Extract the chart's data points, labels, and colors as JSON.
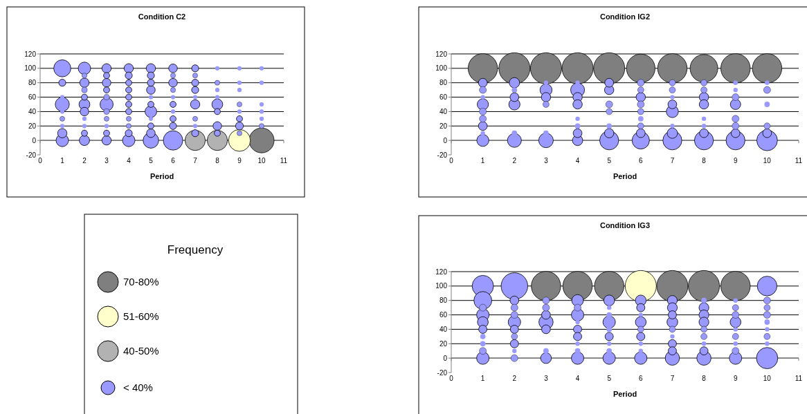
{
  "chart_data": [
    {
      "type": "bubble",
      "title": "Condition C2",
      "xlabel": "Period",
      "xlim": [
        0,
        11
      ],
      "xticks": [
        0,
        1,
        2,
        3,
        4,
        5,
        6,
        7,
        8,
        9,
        10,
        11
      ],
      "ylim": [
        -20,
        120
      ],
      "yticks": [
        -20,
        0,
        20,
        40,
        60,
        80,
        100,
        120
      ],
      "grid": "y",
      "series": [
        {
          "color": "#9999ff",
          "x": [
            1,
            1,
            1,
            1,
            1,
            1,
            1,
            1,
            1,
            2,
            2,
            2,
            2,
            2,
            2,
            2,
            2,
            2,
            2,
            2,
            3,
            3,
            3,
            3,
            3,
            3,
            3,
            3,
            3,
            3,
            3,
            4,
            4,
            4,
            4,
            4,
            4,
            4,
            4,
            4,
            4,
            4,
            5,
            5,
            5,
            5,
            5,
            5,
            5,
            5,
            5,
            5,
            5,
            6,
            6,
            6,
            6,
            6,
            6,
            6,
            6,
            6,
            6,
            7,
            7,
            7,
            7,
            7,
            7,
            7,
            7,
            7,
            8,
            8,
            8,
            8,
            8,
            8,
            8,
            8,
            9,
            9,
            9,
            9,
            9,
            9,
            9,
            9,
            10,
            10,
            10,
            10,
            10,
            10
          ],
          "values": [
            100,
            80,
            60,
            50,
            40,
            30,
            20,
            10,
            0,
            100,
            90,
            80,
            70,
            60,
            50,
            40,
            30,
            20,
            10,
            0,
            100,
            90,
            80,
            70,
            60,
            50,
            40,
            30,
            20,
            10,
            0,
            100,
            90,
            80,
            70,
            60,
            50,
            40,
            30,
            20,
            10,
            0,
            100,
            90,
            80,
            70,
            60,
            50,
            40,
            30,
            20,
            10,
            0,
            100,
            90,
            80,
            70,
            60,
            50,
            40,
            30,
            20,
            0,
            100,
            90,
            80,
            70,
            60,
            50,
            30,
            20,
            10,
            100,
            80,
            70,
            60,
            50,
            40,
            20,
            10,
            100,
            80,
            70,
            50,
            40,
            30,
            20,
            10,
            100,
            80,
            50,
            40,
            30,
            20
          ],
          "sizes": [
            0.47,
            0.08,
            0.03,
            0.32,
            0.03,
            0.04,
            0.03,
            0.14,
            0.25,
            0.25,
            0.04,
            0.14,
            0.05,
            0.06,
            0.19,
            0.12,
            0.03,
            0.03,
            0.06,
            0.17,
            0.14,
            0.06,
            0.12,
            0.06,
            0.05,
            0.28,
            0.05,
            0.04,
            0.03,
            0.06,
            0.14,
            0.14,
            0.08,
            0.06,
            0.06,
            0.06,
            0.06,
            0.06,
            0.04,
            0.04,
            0.08,
            0.25,
            0.14,
            0.08,
            0.08,
            0.12,
            0.03,
            0.06,
            0.22,
            0.03,
            0.06,
            0.12,
            0.39,
            0.12,
            0.04,
            0.12,
            0.04,
            0.03,
            0.06,
            0.03,
            0.06,
            0.08,
            0.61,
            0.08,
            0.04,
            0.08,
            0.08,
            0.03,
            0.14,
            0.04,
            0.03,
            0.08,
            0.03,
            0.04,
            0.03,
            0.03,
            0.19,
            0.06,
            0.12,
            0.06,
            0.03,
            0.03,
            0.03,
            0.04,
            0.03,
            0.06,
            0.1,
            0.04,
            0.03,
            0.03,
            0.03,
            0.03,
            0.03,
            0.04
          ]
        },
        {
          "color": "#b2b2b2",
          "x": [
            7,
            8
          ],
          "values": [
            0,
            0
          ],
          "sizes": [
            0.66,
            0.66
          ]
        },
        {
          "color": "#ffffcc",
          "x": [
            9
          ],
          "values": [
            0
          ],
          "sizes": [
            0.77
          ]
        },
        {
          "color": "#7f7f7f",
          "x": [
            10
          ],
          "values": [
            0
          ],
          "sizes": [
            1
          ]
        }
      ]
    },
    {
      "type": "bubble",
      "title": "Condition IG2",
      "xlabel": "Period",
      "xlim": [
        0,
        11
      ],
      "xticks": [
        0,
        1,
        2,
        3,
        4,
        5,
        6,
        7,
        8,
        9,
        10,
        11
      ],
      "ylim": [
        -20,
        120
      ],
      "yticks": [
        -20,
        0,
        20,
        40,
        60,
        80,
        100,
        120
      ],
      "grid": "y",
      "series": [
        {
          "color": "#7f7f7f",
          "x": [
            1,
            2,
            3,
            4,
            5,
            6,
            7,
            8,
            9,
            10
          ],
          "values": [
            100,
            100,
            100,
            100,
            100,
            100,
            100,
            100,
            100,
            100
          ],
          "sizes": [
            0.89,
            1,
            1,
            1,
            1,
            0.84,
            0.89,
            0.79,
            0.89,
            0.89
          ]
        },
        {
          "color": "#9999ff",
          "x": [
            1,
            1,
            1,
            1,
            1,
            1,
            1,
            1,
            1,
            2,
            2,
            2,
            2,
            2,
            2,
            3,
            3,
            3,
            3,
            3,
            3,
            4,
            4,
            4,
            4,
            4,
            4,
            4,
            4,
            5,
            5,
            5,
            5,
            5,
            5,
            5,
            6,
            6,
            6,
            6,
            6,
            6,
            6,
            6,
            6,
            7,
            7,
            7,
            7,
            7,
            7,
            7,
            7,
            8,
            8,
            8,
            8,
            8,
            8,
            8,
            8,
            9,
            9,
            9,
            9,
            9,
            9,
            9,
            9,
            10,
            10,
            10,
            10,
            10,
            10
          ],
          "values": [
            80,
            70,
            60,
            50,
            40,
            30,
            20,
            10,
            0,
            80,
            70,
            60,
            50,
            10,
            0,
            80,
            70,
            60,
            50,
            10,
            0,
            80,
            70,
            60,
            50,
            30,
            20,
            10,
            0,
            80,
            70,
            50,
            40,
            20,
            10,
            0,
            80,
            70,
            60,
            50,
            40,
            30,
            20,
            10,
            0,
            80,
            70,
            60,
            50,
            40,
            20,
            10,
            0,
            80,
            70,
            60,
            50,
            30,
            20,
            10,
            0,
            80,
            70,
            60,
            50,
            30,
            20,
            10,
            0,
            80,
            70,
            50,
            20,
            10,
            0
          ],
          "sizes": [
            0.08,
            0.05,
            0.02,
            0.13,
            0.05,
            0.05,
            0.08,
            0.02,
            0.15,
            0.11,
            0.03,
            0.08,
            0.13,
            0.03,
            0.2,
            0.02,
            0.15,
            0.09,
            0.04,
            0.03,
            0.22,
            0.02,
            0.2,
            0.09,
            0.09,
            0.02,
            0.03,
            0.08,
            0.11,
            0.08,
            0.09,
            0.05,
            0.04,
            0.03,
            0.09,
            0.37,
            0.05,
            0.04,
            0.09,
            0.05,
            0.04,
            0.03,
            0.04,
            0.08,
            0.31,
            0.04,
            0.04,
            0.02,
            0.08,
            0.15,
            0.02,
            0.11,
            0.37,
            0.04,
            0.04,
            0.09,
            0.09,
            0.02,
            0.02,
            0.08,
            0.37,
            0.02,
            0.02,
            0.05,
            0.11,
            0.05,
            0.05,
            0.08,
            0.37,
            0.02,
            0.05,
            0.03,
            0.04,
            0.08,
            0.44
          ]
        }
      ]
    },
    {
      "type": "other",
      "title": "Frequency",
      "categories": [
        "70-80%",
        "51-60%",
        "40-50%",
        "< 40%"
      ],
      "colors": [
        "#7f7f7f",
        "#ffffcc",
        "#b2b2b2",
        "#9999ff"
      ]
    },
    {
      "type": "bubble",
      "title": "Condition IG3",
      "xlabel": "Period",
      "xlim": [
        0,
        11
      ],
      "xticks": [
        0,
        1,
        2,
        3,
        4,
        5,
        6,
        7,
        8,
        9,
        10,
        11
      ],
      "ylim": [
        -20,
        120
      ],
      "yticks": [
        -20,
        0,
        20,
        40,
        60,
        80,
        100,
        120
      ],
      "grid": "y",
      "series": [
        {
          "color": "#7f7f7f",
          "x": [
            3,
            4,
            5,
            7,
            8,
            9
          ],
          "values": [
            100,
            100,
            100,
            100,
            100,
            100
          ],
          "sizes": [
            0.89,
            0.89,
            0.89,
            1,
            1,
            0.89
          ]
        },
        {
          "color": "#ffffcc",
          "x": [
            6
          ],
          "values": [
            100
          ],
          "sizes": [
            1
          ]
        },
        {
          "color": "#9999ff",
          "x": [
            1,
            1,
            1,
            1,
            1,
            1,
            1,
            1,
            1,
            1,
            2,
            2,
            2,
            2,
            2,
            2,
            2,
            2,
            2,
            2,
            3,
            3,
            3,
            3,
            3,
            3,
            3,
            4,
            4,
            4,
            4,
            4,
            4,
            4,
            4,
            4,
            5,
            5,
            5,
            5,
            5,
            5,
            5,
            5,
            5,
            6,
            6,
            6,
            6,
            6,
            6,
            6,
            6,
            6,
            7,
            7,
            7,
            7,
            7,
            7,
            7,
            7,
            7,
            8,
            8,
            8,
            8,
            8,
            8,
            8,
            8,
            8,
            9,
            9,
            9,
            9,
            9,
            9,
            9,
            9,
            9,
            10,
            10,
            10,
            10,
            10,
            10,
            10,
            10,
            10
          ],
          "values": [
            100,
            80,
            70,
            60,
            50,
            40,
            30,
            20,
            10,
            0,
            100,
            80,
            70,
            60,
            50,
            40,
            30,
            20,
            10,
            0,
            80,
            70,
            60,
            50,
            40,
            10,
            0,
            80,
            70,
            60,
            50,
            40,
            30,
            20,
            10,
            0,
            80,
            70,
            60,
            50,
            40,
            30,
            20,
            10,
            0,
            80,
            70,
            60,
            50,
            40,
            30,
            20,
            10,
            0,
            80,
            70,
            60,
            50,
            40,
            30,
            20,
            10,
            0,
            80,
            70,
            60,
            50,
            40,
            30,
            20,
            10,
            0,
            80,
            70,
            60,
            50,
            40,
            30,
            20,
            10,
            0,
            100,
            80,
            70,
            60,
            50,
            40,
            30,
            20,
            0
          ],
          "sizes": [
            0.47,
            0.33,
            0.05,
            0.16,
            0.12,
            0.07,
            0.03,
            0.03,
            0.05,
            0.16,
            0.73,
            0.08,
            0.05,
            0.05,
            0.16,
            0.07,
            0.04,
            0.07,
            0.02,
            0.05,
            0.05,
            0.05,
            0.08,
            0.21,
            0.08,
            0.03,
            0.12,
            0.14,
            0.05,
            0.16,
            0.02,
            0.07,
            0.07,
            0.02,
            0.03,
            0.16,
            0.12,
            0.02,
            0.03,
            0.16,
            0.03,
            0.07,
            0.02,
            0.03,
            0.16,
            0.12,
            0.07,
            0.02,
            0.12,
            0.04,
            0.07,
            0.02,
            0.02,
            0.16,
            0.1,
            0.1,
            0.07,
            0.12,
            0.04,
            0.02,
            0.07,
            0.07,
            0.21,
            0.03,
            0.1,
            0.1,
            0.1,
            0.04,
            0.04,
            0.02,
            0.07,
            0.21,
            0.02,
            0.04,
            0.05,
            0.12,
            0.02,
            0.04,
            0.02,
            0.05,
            0.16,
            0.4,
            0.05,
            0.04,
            0.05,
            0.03,
            0.02,
            0.04,
            0.02,
            0.47
          ]
        }
      ]
    }
  ]
}
